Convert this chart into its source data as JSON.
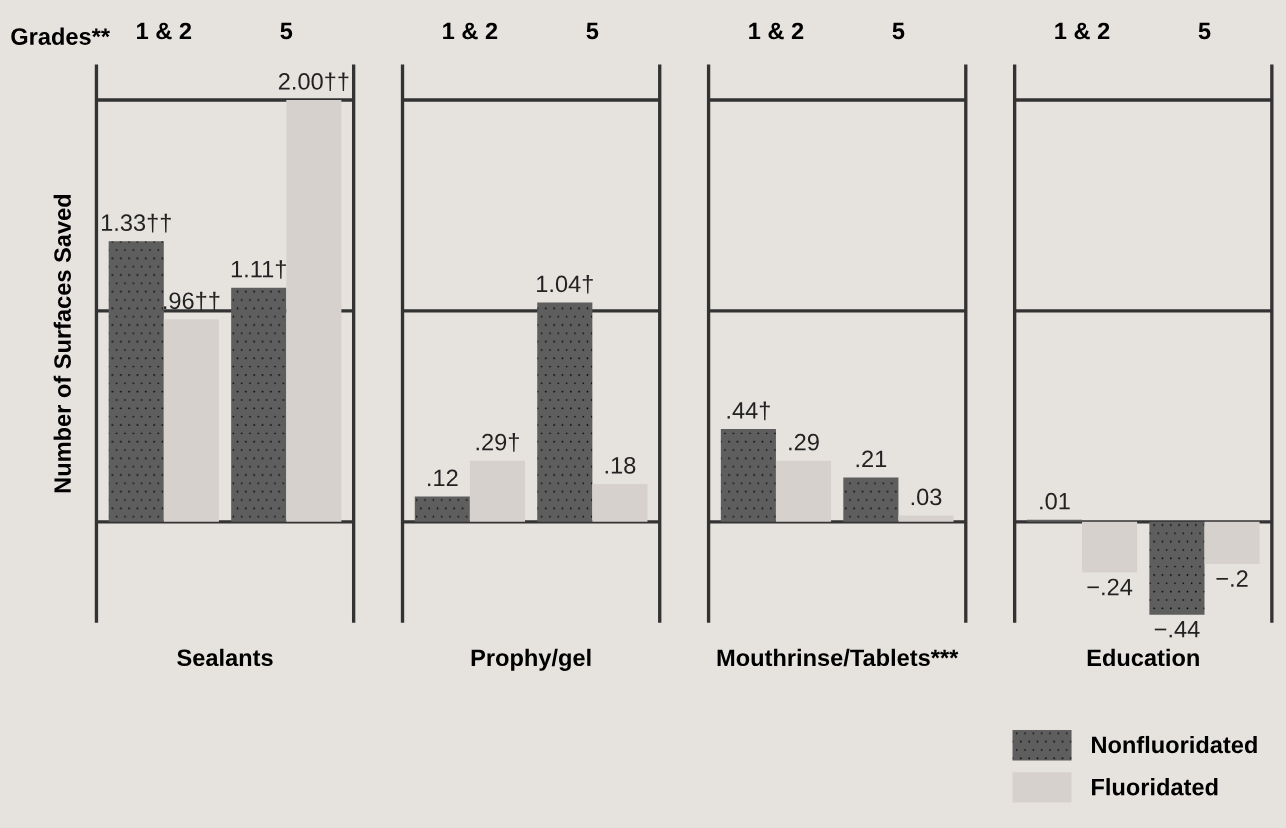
{
  "chart_data": [
    {
      "type": "bar",
      "xlabel": "Sealants",
      "ylabel": "Number of Surfaces Saved",
      "annotations": [
        "Grades**"
      ],
      "categories": [
        "1 & 2",
        "5"
      ],
      "ylim": [
        -0.47,
        2.16
      ],
      "yticks": [
        {
          "value": 0,
          "label": null
        },
        {
          "value": 1,
          "label": null
        },
        {
          "value": 2,
          "label": null
        }
      ],
      "grid": "y",
      "series": [
        {
          "color": "#5e5e5e",
          "values": [
            1.33,
            1.11
          ],
          "value_labels": [
            "1.33††",
            "1.11†"
          ]
        },
        {
          "color": "#d6d1cc",
          "values": [
            0.96,
            2.0
          ],
          "value_labels": [
            ".96††",
            "2.00††"
          ]
        }
      ]
    },
    {
      "type": "bar",
      "xlabel": "Prophy/gel",
      "categories": [
        "1 & 2",
        "5"
      ],
      "ylim": [
        -0.47,
        2.16
      ],
      "yticks": [
        {
          "value": 0,
          "label": null
        },
        {
          "value": 1,
          "label": null
        },
        {
          "value": 2,
          "label": null
        }
      ],
      "grid": "y",
      "series": [
        {
          "color": "#5e5e5e",
          "values": [
            0.12,
            1.04
          ],
          "value_labels": [
            ".12",
            "1.04†"
          ]
        },
        {
          "color": "#d6d1cc",
          "values": [
            0.29,
            0.18
          ],
          "value_labels": [
            ".29†",
            ".18"
          ]
        }
      ]
    },
    {
      "type": "bar",
      "xlabel": "Mouthrinse/Tablets***",
      "categories": [
        "1 & 2",
        "5"
      ],
      "ylim": [
        -0.47,
        2.16
      ],
      "yticks": [
        {
          "value": 0,
          "label": null
        },
        {
          "value": 1,
          "label": null
        },
        {
          "value": 2,
          "label": null
        }
      ],
      "grid": "y",
      "series": [
        {
          "color": "#5e5e5e",
          "values": [
            0.44,
            0.21
          ],
          "value_labels": [
            ".44†",
            ".21"
          ]
        },
        {
          "color": "#d6d1cc",
          "values": [
            0.29,
            0.03
          ],
          "value_labels": [
            ".29",
            ".03"
          ]
        }
      ]
    },
    {
      "type": "bar",
      "xlabel": "Education",
      "categories": [
        "1 & 2",
        "5"
      ],
      "ylim": [
        -0.47,
        2.16
      ],
      "yticks": [
        {
          "value": 0,
          "label": null
        },
        {
          "value": 1,
          "label": null
        },
        {
          "value": 2,
          "label": null
        }
      ],
      "grid": "y",
      "legend": "bottom right",
      "series": [
        {
          "name": "Nonfluoridated",
          "color": "#5e5e5e",
          "values": [
            0.01,
            -0.44
          ],
          "value_labels": [
            ".01",
            "−.44"
          ]
        },
        {
          "name": "Fluoridated",
          "color": "#d6d1cc",
          "values": [
            -0.24,
            -0.2
          ],
          "value_labels": [
            "−.24",
            "−.2"
          ]
        }
      ]
    }
  ]
}
